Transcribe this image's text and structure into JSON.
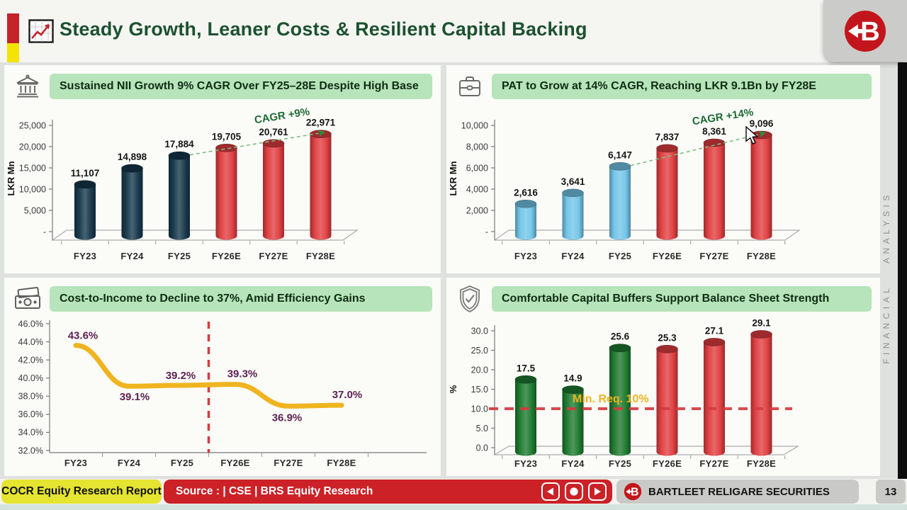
{
  "header": {
    "title": "Steady Growth, Leaner Costs & Resilient Capital Backing",
    "logo_letter": "B"
  },
  "side_label": "FINANCIAL ANALYSIS",
  "footer": {
    "report_label": "COCR Equity Research Report",
    "source_label": "Source : | CSE | BRS Equity Research",
    "brand_label": "BARTLEET RELIGARE SECURITIES",
    "brand_logo_letter": "B",
    "page_number": "13"
  },
  "chart_data": [
    {
      "id": "nii-growth",
      "type": "bar",
      "title": "Sustained NII Growth 9% CAGR Over FY25–28E Despite High Base",
      "icon": "bank-icon",
      "categories": [
        "FY23",
        "FY24",
        "FY25",
        "FY26E",
        "FY27E",
        "FY28E"
      ],
      "values": [
        11107,
        14898,
        17884,
        19705,
        20761,
        22971
      ],
      "value_labels": [
        "11,107",
        "14,898",
        "17,884",
        "19,705",
        "20,761",
        "22,971"
      ],
      "bar_colors": [
        "#16384B",
        "#16384B",
        "#16384B",
        "#E03E40",
        "#E03E40",
        "#E03E40"
      ],
      "ylabel": "LKR Mn",
      "ylim": [
        0,
        25000
      ],
      "yticks": [
        {
          "v": 25000,
          "label": "25,000"
        },
        {
          "v": 20000,
          "label": "20,000"
        },
        {
          "v": 15000,
          "label": "15,000"
        },
        {
          "v": 10000,
          "label": "10,000"
        },
        {
          "v": 5000,
          "label": "5,000"
        },
        {
          "v": 0,
          "label": "-"
        }
      ],
      "annotation": {
        "text": "CAGR +9%",
        "from": 2,
        "to": 5,
        "color": "#1E6B35",
        "line_color": "#7CBE82"
      }
    },
    {
      "id": "pat-growth",
      "type": "bar",
      "title": "PAT to Grow at 14% CAGR, Reaching LKR 9.1Bn by FY28E",
      "icon": "briefcase-icon",
      "categories": [
        "FY23",
        "FY24",
        "FY25",
        "FY26E",
        "FY27E",
        "FY28E"
      ],
      "values": [
        2616,
        3641,
        6147,
        7837,
        8361,
        9096
      ],
      "value_labels": [
        "2,616",
        "3,641",
        "6,147",
        "7,837",
        "8,361",
        "9,096"
      ],
      "bar_colors": [
        "#72C5E8",
        "#72C5E8",
        "#72C5E8",
        "#E03E40",
        "#E03E40",
        "#E03E40"
      ],
      "ylabel": "LKR Mn",
      "ylim": [
        0,
        10000
      ],
      "yticks": [
        {
          "v": 10000,
          "label": "10,000"
        },
        {
          "v": 8000,
          "label": "8,000"
        },
        {
          "v": 6000,
          "label": "6,000"
        },
        {
          "v": 4000,
          "label": "4,000"
        },
        {
          "v": 2000,
          "label": "2,000"
        },
        {
          "v": 0,
          "label": "-"
        }
      ],
      "annotation": {
        "text": "CAGR +14%",
        "from": 2,
        "to": 5,
        "color": "#1E6B35",
        "line_color": "#7CBE82"
      },
      "cursor": true
    },
    {
      "id": "cost-to-income",
      "type": "line",
      "title": "Cost-to-Income to Decline to 37%, Amid Efficiency Gains",
      "icon": "cash-icon",
      "categories": [
        "FY23",
        "FY24",
        "FY25",
        "FY26E",
        "FY27E",
        "FY28E"
      ],
      "values": [
        43.6,
        39.1,
        39.2,
        39.3,
        36.9,
        37.0
      ],
      "value_labels": [
        "43.6%",
        "39.1%",
        "39.2%",
        "39.3%",
        "36.9%",
        "37.0%"
      ],
      "line_color": "#EFB41F",
      "label_color": "#5B2150",
      "ylim": [
        32,
        46
      ],
      "yticks": [
        {
          "v": 46,
          "label": "46.0%"
        },
        {
          "v": 44,
          "label": "44.0%"
        },
        {
          "v": 42,
          "label": "42.0%"
        },
        {
          "v": 40,
          "label": "40.0%"
        },
        {
          "v": 38,
          "label": "38.0%"
        },
        {
          "v": 36,
          "label": "36.0%"
        },
        {
          "v": 34,
          "label": "34.0%"
        },
        {
          "v": 32,
          "label": "32.0%"
        }
      ],
      "divider_after_index": 2,
      "divider_color": "#D8393D"
    },
    {
      "id": "capital-buffers",
      "type": "bar",
      "title": "Comfortable Capital Buffers Support Balance Sheet Strength",
      "icon": "shield-check-icon",
      "categories": [
        "FY23",
        "FY24",
        "FY25",
        "FY26E",
        "FY27E",
        "FY28E"
      ],
      "values": [
        17.5,
        14.9,
        25.6,
        25.3,
        27.1,
        29.1
      ],
      "value_labels": [
        "17.5",
        "14.9",
        "25.6",
        "25.3",
        "27.1",
        "29.1"
      ],
      "bar_colors": [
        "#1D7A2F",
        "#1D7A2F",
        "#1D7A2F",
        "#E03E40",
        "#E03E40",
        "#E03E40"
      ],
      "ylabel": "%",
      "ylim": [
        0,
        30
      ],
      "yticks": [
        {
          "v": 30,
          "label": "30.0"
        },
        {
          "v": 25,
          "label": "25.0"
        },
        {
          "v": 20,
          "label": "20.0"
        },
        {
          "v": 15,
          "label": "15.0"
        },
        {
          "v": 10,
          "label": "10.0"
        },
        {
          "v": 5,
          "label": "5.0"
        },
        {
          "v": 0,
          "label": "0.0"
        }
      ],
      "threshold": {
        "value": 10,
        "label": "Min. Req. 10%",
        "line_color": "#D63B3F",
        "label_color": "#EFB41F"
      }
    }
  ]
}
